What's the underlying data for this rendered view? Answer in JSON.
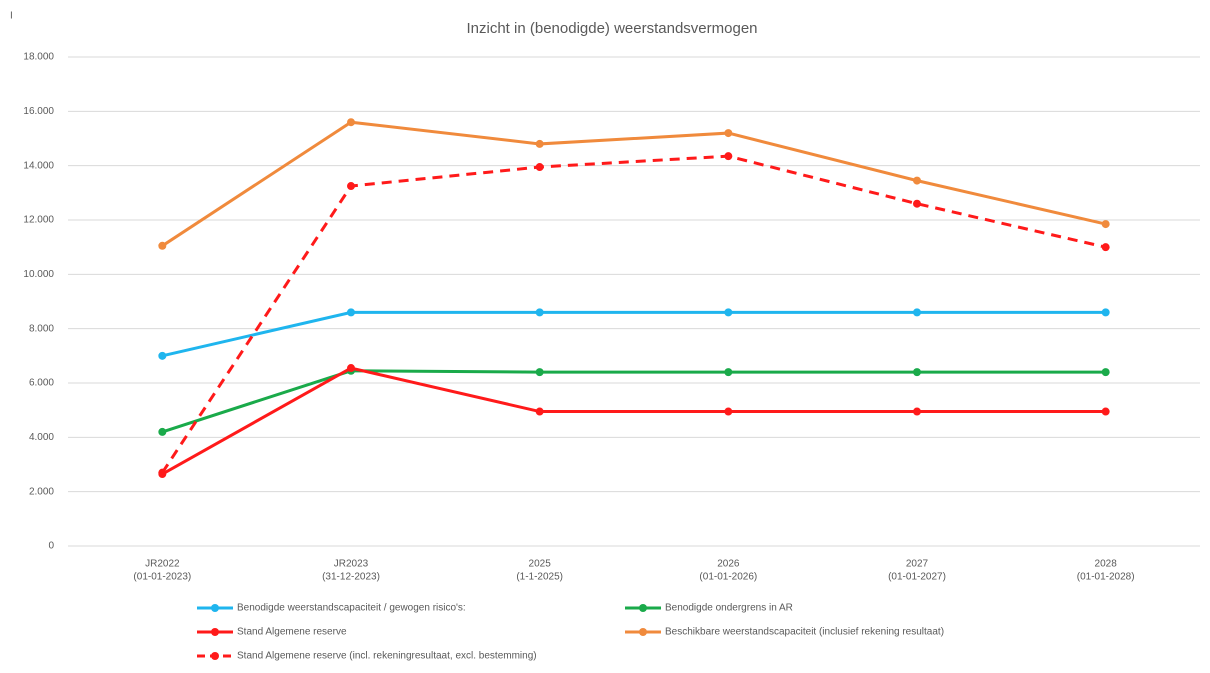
{
  "chart_data": {
    "type": "line",
    "title": "Inzicht in (benodigde) weerstandsvermogen",
    "annotation": "I",
    "categories": [
      [
        "JR2022",
        "(01-01-2023)"
      ],
      [
        "JR2023",
        "(31-12-2023)"
      ],
      [
        "2025",
        "(1-1-2025)"
      ],
      [
        "2026",
        "(01-01-2026)"
      ],
      [
        "2027",
        "(01-01-2027)"
      ],
      [
        "2028",
        "(01-01-2028)"
      ]
    ],
    "ylim": [
      0,
      18000
    ],
    "yticks": [
      0,
      {
        "value": 2000,
        "label": "2.000"
      },
      {
        "value": 4000,
        "label": "4.000"
      },
      {
        "value": 6000,
        "label": "6.000"
      },
      {
        "value": 8000,
        "label": "8.000"
      },
      {
        "value": 10000,
        "label": "10.000"
      },
      {
        "value": 12000,
        "label": "12.000"
      },
      {
        "value": 14000,
        "label": "14.000"
      },
      {
        "value": 16000,
        "label": "16.000"
      },
      {
        "value": 18000,
        "label": "18.000"
      }
    ],
    "grid": true,
    "legend": "bottom",
    "series": [
      {
        "name": "Benodigde weerstandscapaciteit / gewogen risico's:",
        "color": "#1fb5ee",
        "dashed": false,
        "values": [
          7000,
          8600,
          8600,
          8600,
          8600,
          8600
        ]
      },
      {
        "name": "Benodigde ondergrens in AR",
        "color": "#1aaa4a",
        "dashed": false,
        "values": [
          4200,
          6450,
          6400,
          6400,
          6400,
          6400
        ]
      },
      {
        "name": "Stand Algemene reserve",
        "color": "#ff1a1a",
        "dashed": false,
        "values": [
          2650,
          6550,
          4950,
          4950,
          4950,
          4950
        ]
      },
      {
        "name": "Beschikbare weerstandscapaciteit (inclusief rekening resultaat)",
        "color": "#f08a3c",
        "dashed": false,
        "values": [
          11050,
          15600,
          14800,
          15200,
          13450,
          11850
        ]
      },
      {
        "name": "Stand Algemene reserve (incl. rekeningresultaat, excl. bestemming)",
        "color": "#ff1a1a",
        "dashed": true,
        "values": [
          2700,
          13250,
          13950,
          14350,
          12600,
          11000
        ]
      }
    ]
  }
}
